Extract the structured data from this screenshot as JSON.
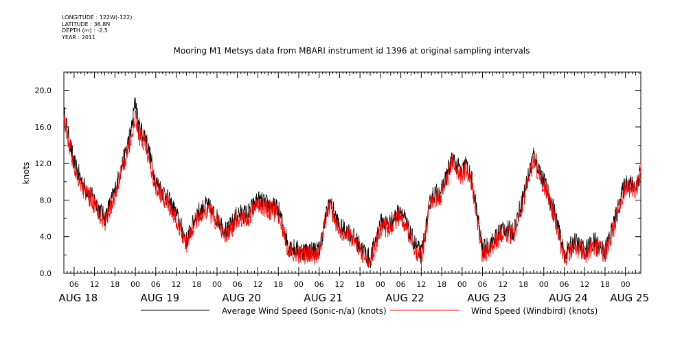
{
  "metadata": {
    "longitude": "LONGITUDE : 122W(-122)",
    "latitude": "LATITUDE : 36.8N",
    "depth": "DEPTH (m) : -2.5",
    "year": "YEAR : 2011"
  },
  "chart_data": {
    "type": "line",
    "title": "Mooring M1 Metsys data from MBARI instrument id 1396 at original sampling intervals",
    "ylabel": "knots",
    "xlabel": "",
    "ylim": [
      0,
      22
    ],
    "yticks": [
      "0.0",
      "4.0",
      "8.0",
      "12.0",
      "16.0",
      "20.0"
    ],
    "yticks_values": [
      0,
      4,
      8,
      12,
      16,
      20
    ],
    "xlim_hours": [
      3,
      172.5
    ],
    "hour_tick_labels": [
      "06",
      "12",
      "18",
      "00",
      "06",
      "12",
      "18",
      "00",
      "06",
      "12",
      "18",
      "00",
      "06",
      "12",
      "18",
      "00",
      "06",
      "12",
      "18",
      "00",
      "06",
      "12",
      "18",
      "00",
      "06",
      "12",
      "18",
      "00"
    ],
    "hour_tick_positions": [
      6,
      12,
      18,
      24,
      30,
      36,
      42,
      48,
      54,
      60,
      66,
      72,
      78,
      84,
      90,
      96,
      102,
      108,
      114,
      120,
      126,
      132,
      138,
      144,
      150,
      156,
      162,
      168
    ],
    "day_labels": [
      "AUG 18",
      "AUG 19",
      "AUG 20",
      "AUG 21",
      "AUG 22",
      "AUG 23",
      "AUG 24",
      "AUG 25"
    ],
    "day_label_positions": [
      6,
      30,
      54,
      78,
      102,
      126,
      150,
      168
    ],
    "grid": false,
    "legend_position": "bottom",
    "series": [
      {
        "name": "Average Wind Speed (Sonic-n/a) (knots)",
        "color": "#000000",
        "x": [
          3,
          6,
          9,
          12,
          15,
          18,
          21,
          23,
          24,
          25,
          27,
          30,
          33,
          36,
          39,
          42,
          45,
          48,
          51,
          54,
          57,
          60,
          63,
          66,
          69,
          72,
          75,
          78,
          81,
          84,
          87,
          90,
          93,
          96,
          99,
          102,
          105,
          108,
          111,
          114,
          117,
          120,
          121,
          123,
          126,
          129,
          132,
          135,
          138,
          141,
          144,
          147,
          150,
          153,
          156,
          159,
          162,
          165,
          168,
          171,
          172.5
        ],
        "y": [
          17.5,
          12,
          9.5,
          8,
          6,
          9,
          13,
          16,
          19,
          16,
          15,
          10,
          8.5,
          6.5,
          3.5,
          6.5,
          7.5,
          6,
          4.5,
          6.5,
          6.5,
          8,
          7.5,
          7,
          3,
          2.5,
          2.5,
          2.5,
          8,
          5,
          4.5,
          3,
          1.5,
          5.5,
          5.5,
          7,
          4,
          2,
          8.5,
          9,
          12.5,
          11,
          12,
          10,
          2.5,
          3.5,
          5,
          4.5,
          8.5,
          13,
          10,
          7,
          2,
          3.5,
          2.5,
          3.5,
          2.5,
          6,
          10,
          9.5,
          11.5
        ]
      },
      {
        "name": "Wind Speed (Windbird) (knots)",
        "color": "#ff0000",
        "x": [
          3,
          6,
          9,
          12,
          15,
          18,
          21,
          23,
          24,
          25,
          27,
          30,
          33,
          36,
          39,
          42,
          45,
          48,
          51,
          54,
          57,
          60,
          63,
          66,
          69,
          72,
          75,
          78,
          81,
          84,
          87,
          90,
          93,
          96,
          99,
          102,
          105,
          108,
          111,
          114,
          117,
          120,
          121,
          123,
          126,
          129,
          132,
          135,
          138,
          141,
          144,
          147,
          150,
          153,
          156,
          159,
          162,
          165,
          168,
          171,
          172.5
        ],
        "y": [
          17,
          11.5,
          9,
          7.5,
          5.5,
          8.5,
          12.5,
          15,
          17,
          15,
          14,
          9.5,
          8,
          6,
          3.2,
          6,
          7,
          5.5,
          4,
          6,
          6,
          7.5,
          7,
          6.5,
          2.5,
          2,
          2,
          2,
          7.5,
          4.5,
          4,
          2.5,
          1,
          5,
          5,
          6.5,
          3.5,
          1.5,
          8,
          8.5,
          12,
          10.5,
          11.5,
          9.5,
          2,
          3,
          4.5,
          4,
          8,
          12.5,
          9.5,
          6.5,
          1.5,
          3,
          2,
          3,
          2,
          5.5,
          9.5,
          9,
          11
        ]
      }
    ]
  }
}
